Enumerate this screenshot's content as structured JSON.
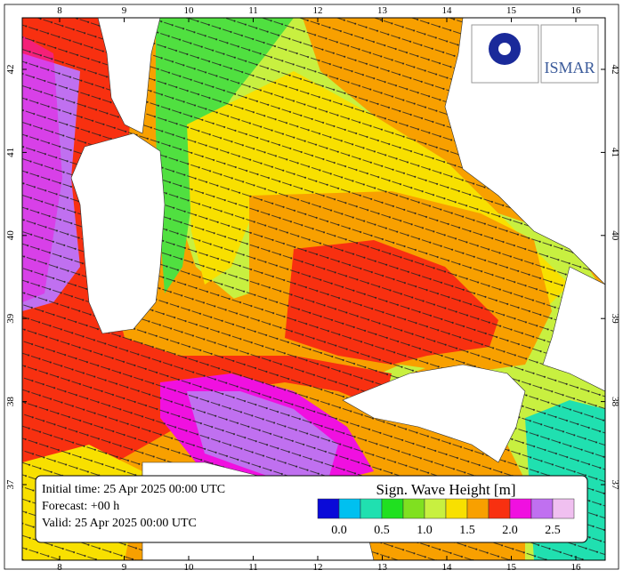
{
  "map": {
    "lon_ticks": [
      8,
      9,
      10,
      11,
      12,
      13,
      14,
      15,
      16
    ],
    "lat_ticks": [
      37,
      38,
      39,
      40,
      41,
      42
    ]
  },
  "info": {
    "lines": [
      "Initial time: 25 Apr 2025 00:00 UTC",
      "Forecast: +00 h",
      "Valid: 25 Apr 2025 00:00 UTC"
    ]
  },
  "legend": {
    "title": "Sign. Wave Height [m]",
    "colors": [
      "#0a0ad8",
      "#00c0f0",
      "#20e0b0",
      "#20e020",
      "#80e020",
      "#c8f040",
      "#f8e000",
      "#f8a000",
      "#f83010",
      "#f010e0",
      "#c070f0",
      "#f0c0f0"
    ],
    "labels": [
      "0.0",
      "0.5",
      "1.0",
      "1.5",
      "2.0",
      "2.5"
    ]
  },
  "logos": [
    "ISMAR"
  ]
}
